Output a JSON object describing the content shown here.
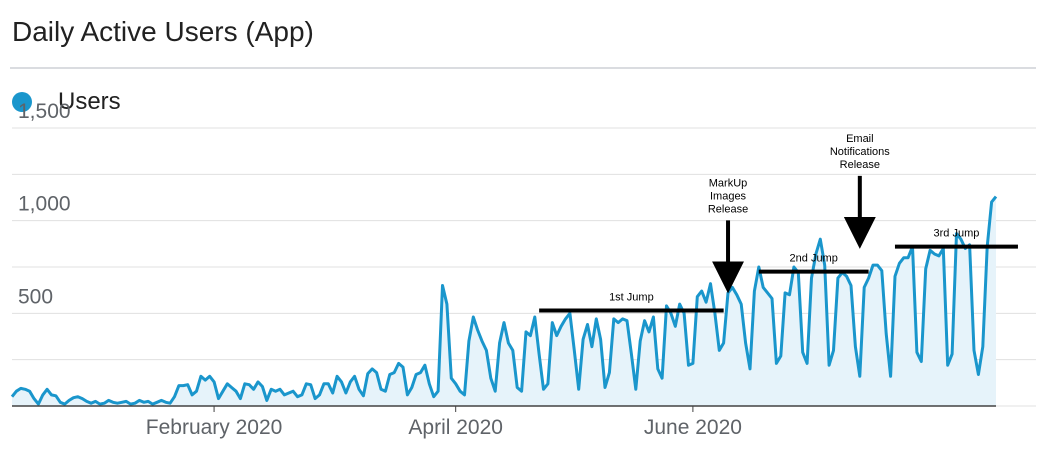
{
  "chart_data": {
    "type": "area",
    "title": "Daily Active Users (App)",
    "legend": {
      "position": "top-left",
      "items": [
        {
          "name": "Users",
          "color": "#1a96cc"
        }
      ]
    },
    "series": [
      {
        "name": "Users",
        "color": "#1a96cc",
        "values": [
          50,
          80,
          95,
          90,
          80,
          40,
          10,
          60,
          90,
          60,
          55,
          20,
          10,
          30,
          45,
          50,
          40,
          25,
          15,
          25,
          10,
          15,
          30,
          20,
          15,
          20,
          25,
          10,
          15,
          30,
          20,
          25,
          10,
          20,
          30,
          20,
          15,
          50,
          110,
          110,
          115,
          60,
          80,
          160,
          140,
          160,
          130,
          40,
          80,
          120,
          100,
          80,
          40,
          120,
          115,
          90,
          130,
          105,
          30,
          90,
          80,
          90,
          60,
          70,
          80,
          50,
          60,
          120,
          115,
          40,
          60,
          120,
          120,
          70,
          160,
          130,
          70,
          130,
          160,
          90,
          55,
          175,
          200,
          180,
          90,
          80,
          170,
          180,
          230,
          210,
          60,
          100,
          170,
          180,
          220,
          120,
          50,
          80,
          650,
          550,
          150,
          120,
          80,
          60,
          350,
          480,
          410,
          350,
          300,
          150,
          80,
          340,
          450,
          340,
          300,
          100,
          80,
          400,
          380,
          480,
          280,
          90,
          120,
          450,
          380,
          430,
          470,
          500,
          300,
          90,
          360,
          440,
          320,
          470,
          360,
          100,
          180,
          470,
          450,
          470,
          460,
          280,
          90,
          350,
          460,
          400,
          480,
          200,
          150,
          540,
          500,
          430,
          550,
          500,
          220,
          230,
          590,
          620,
          560,
          660,
          500,
          300,
          340,
          610,
          640,
          600,
          550,
          340,
          200,
          620,
          750,
          640,
          610,
          580,
          230,
          270,
          610,
          600,
          750,
          720,
          290,
          230,
          690,
          820,
          900,
          760,
          220,
          300,
          690,
          720,
          700,
          650,
          320,
          160,
          640,
          690,
          760,
          760,
          730,
          390,
          160,
          700,
          770,
          800,
          800,
          860,
          290,
          240,
          740,
          840,
          820,
          810,
          850,
          220,
          280,
          930,
          900,
          850,
          870,
          300,
          170,
          320,
          860,
          1100,
          1130
        ]
      }
    ],
    "x_axis": {
      "ticks": [
        "February 2020",
        "April 2020",
        "June 2020"
      ]
    },
    "y_axis": {
      "ticks": [
        "1,500",
        "1,000",
        "500"
      ],
      "min": 0,
      "max": 1500,
      "gridlines": true
    },
    "annotations": [
      {
        "type": "arrow",
        "lines": [
          "MarkUp",
          "Images",
          "Release"
        ],
        "at_index": 163,
        "at_value": 640
      },
      {
        "type": "arrow",
        "lines": [
          "Email",
          "Notifications",
          "Release"
        ],
        "at_index": 193,
        "at_value": 880
      },
      {
        "type": "bar",
        "label": "1st Jump",
        "from_index": 120,
        "to_index": 162,
        "value": 515
      },
      {
        "type": "bar",
        "label": "2nd Jump",
        "from_index": 170,
        "to_index": 195,
        "value": 725
      },
      {
        "type": "bar",
        "label": "3rd Jump",
        "from_index": 201,
        "to_index": 229,
        "value": 860
      }
    ]
  }
}
